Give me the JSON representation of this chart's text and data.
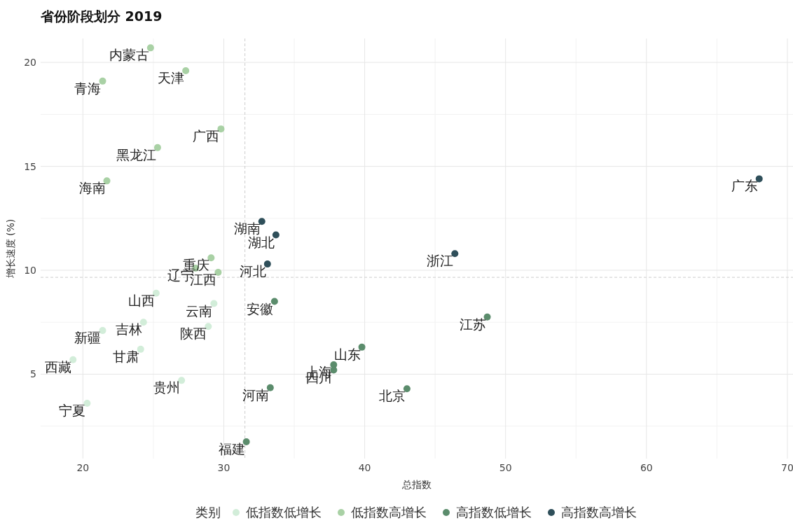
{
  "chart_data": {
    "type": "scatter",
    "title": "省份阶段划分 2019",
    "xlabel": "总指数",
    "ylabel": "增长速度 (%)",
    "legend_title": "类别",
    "legend": "bottom",
    "grid": true,
    "marker": "circle",
    "xlim": [
      17,
      70.4
    ],
    "xticks": [
      20,
      30,
      40,
      50,
      60,
      70
    ],
    "ylim": [
      0.94,
      21.15
    ],
    "yticks": [
      5,
      10,
      15,
      20
    ],
    "ref_lines": [
      {
        "axis": "x",
        "value": 31.5,
        "line_style": "dashed",
        "color": "#cccccc"
      },
      {
        "axis": "y",
        "value": 9.66,
        "line_style": "dashed",
        "color": "#cccccc"
      }
    ],
    "series": [
      {
        "name": "低指数低增长",
        "color": "#d2edd9",
        "x": [
          25.2,
          29.3,
          28.9,
          24.3,
          21.4,
          24.1,
          19.3,
          27.0,
          20.3
        ],
        "values": [
          8.9,
          8.4,
          7.3,
          7.5,
          7.1,
          6.2,
          5.7,
          4.7,
          3.6
        ]
      },
      {
        "name": "低指数高增长",
        "color": "#a9d1a5",
        "x": [
          24.8,
          27.3,
          21.4,
          29.8,
          25.3,
          21.7,
          29.1,
          29.6,
          28.0
        ],
        "values": [
          20.7,
          19.6,
          19.1,
          16.8,
          15.9,
          14.3,
          10.6,
          9.9,
          10.1
        ]
      },
      {
        "name": "高指数低增长",
        "color": "#5b8c6c",
        "x": [
          33.6,
          39.8,
          37.8,
          37.8,
          33.3,
          43.0,
          31.6,
          48.7
        ],
        "values": [
          8.5,
          6.3,
          5.45,
          5.2,
          4.35,
          4.3,
          1.75,
          7.75
        ]
      },
      {
        "name": "高指数高增长",
        "color": "#2f4f5a",
        "x": [
          32.7,
          33.7,
          33.1,
          46.4,
          68.0
        ],
        "values": [
          12.35,
          11.7,
          10.3,
          10.8,
          14.4
        ]
      }
    ],
    "annotations": [
      {
        "text": "山西",
        "x": 25.2,
        "y": 8.9
      },
      {
        "text": "云南",
        "x": 29.3,
        "y": 8.4
      },
      {
        "text": "陕西",
        "x": 28.9,
        "y": 7.3
      },
      {
        "text": "吉林",
        "x": 24.3,
        "y": 7.5
      },
      {
        "text": "新疆",
        "x": 21.4,
        "y": 7.1
      },
      {
        "text": "甘肃",
        "x": 24.1,
        "y": 6.2
      },
      {
        "text": "西藏",
        "x": 19.3,
        "y": 5.7
      },
      {
        "text": "贵州",
        "x": 27.0,
        "y": 4.7
      },
      {
        "text": "宁夏",
        "x": 20.3,
        "y": 3.6
      },
      {
        "text": "内蒙古",
        "x": 24.8,
        "y": 20.7
      },
      {
        "text": "天津",
        "x": 27.3,
        "y": 19.6
      },
      {
        "text": "青海",
        "x": 21.4,
        "y": 19.1
      },
      {
        "text": "广西",
        "x": 29.8,
        "y": 16.8
      },
      {
        "text": "黑龙江",
        "x": 25.3,
        "y": 15.9
      },
      {
        "text": "海南",
        "x": 21.7,
        "y": 14.3
      },
      {
        "text": "重庆",
        "x": 29.1,
        "y": 10.6
      },
      {
        "text": "江西",
        "x": 29.6,
        "y": 9.9
      },
      {
        "text": "辽宁",
        "x": 28.0,
        "y": 10.1
      },
      {
        "text": "安徽",
        "x": 33.6,
        "y": 8.5
      },
      {
        "text": "山东",
        "x": 39.8,
        "y": 6.3
      },
      {
        "text": "上海",
        "x": 37.8,
        "y": 5.45
      },
      {
        "text": "四川",
        "x": 37.8,
        "y": 5.2
      },
      {
        "text": "河南",
        "x": 33.3,
        "y": 4.35
      },
      {
        "text": "北京",
        "x": 43.0,
        "y": 4.3
      },
      {
        "text": "福建",
        "x": 31.6,
        "y": 1.75
      },
      {
        "text": "江苏",
        "x": 48.7,
        "y": 7.75
      },
      {
        "text": "湖南",
        "x": 32.7,
        "y": 12.35
      },
      {
        "text": "湖北",
        "x": 33.7,
        "y": 11.7
      },
      {
        "text": "河北",
        "x": 33.1,
        "y": 10.3
      },
      {
        "text": "浙江",
        "x": 46.4,
        "y": 10.8
      },
      {
        "text": "广东",
        "x": 68.0,
        "y": 14.4
      }
    ]
  }
}
